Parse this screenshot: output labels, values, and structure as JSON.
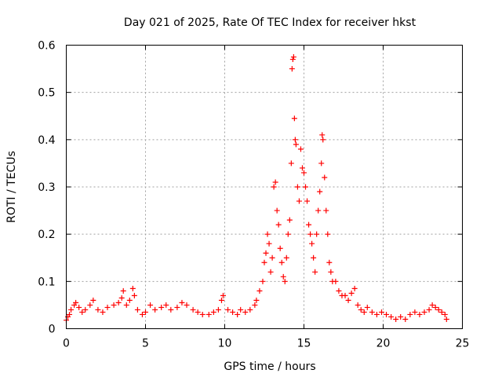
{
  "chart_data": {
    "type": "scatter",
    "title": "Day 021 of 2025, Rate Of TEC Index for receiver hkst",
    "xlabel": "GPS time / hours",
    "ylabel": "ROTI / TECUs",
    "xlim": [
      0,
      25
    ],
    "ylim": [
      0,
      0.6
    ],
    "xticks": [
      "0",
      "5",
      "10",
      "15",
      "20",
      "25"
    ],
    "yticks": [
      "0",
      "0.1",
      "0.2",
      "0.3",
      "0.4",
      "0.5",
      "0.6"
    ],
    "grid": true,
    "legend": "none",
    "marker": "+",
    "color": "#ff0000",
    "series": [
      {
        "points": [
          [
            0.0,
            0.018
          ],
          [
            0.1,
            0.025
          ],
          [
            0.2,
            0.03
          ],
          [
            0.3,
            0.04
          ],
          [
            0.5,
            0.05
          ],
          [
            0.6,
            0.055
          ],
          [
            0.8,
            0.045
          ],
          [
            1.0,
            0.035
          ],
          [
            1.2,
            0.04
          ],
          [
            1.5,
            0.05
          ],
          [
            1.7,
            0.06
          ],
          [
            2.0,
            0.04
          ],
          [
            2.3,
            0.035
          ],
          [
            2.6,
            0.045
          ],
          [
            3.0,
            0.05
          ],
          [
            3.3,
            0.055
          ],
          [
            3.5,
            0.065
          ],
          [
            3.6,
            0.08
          ],
          [
            3.8,
            0.05
          ],
          [
            4.0,
            0.06
          ],
          [
            4.2,
            0.085
          ],
          [
            4.3,
            0.07
          ],
          [
            4.5,
            0.04
          ],
          [
            4.8,
            0.03
          ],
          [
            5.0,
            0.035
          ],
          [
            5.3,
            0.05
          ],
          [
            5.6,
            0.04
          ],
          [
            6.0,
            0.045
          ],
          [
            6.3,
            0.05
          ],
          [
            6.6,
            0.04
          ],
          [
            7.0,
            0.045
          ],
          [
            7.3,
            0.055
          ],
          [
            7.6,
            0.05
          ],
          [
            8.0,
            0.04
          ],
          [
            8.3,
            0.035
          ],
          [
            8.6,
            0.03
          ],
          [
            9.0,
            0.03
          ],
          [
            9.3,
            0.035
          ],
          [
            9.6,
            0.04
          ],
          [
            9.8,
            0.06
          ],
          [
            9.9,
            0.07
          ],
          [
            10.2,
            0.04
          ],
          [
            10.5,
            0.035
          ],
          [
            10.8,
            0.03
          ],
          [
            11.0,
            0.04
          ],
          [
            11.3,
            0.035
          ],
          [
            11.6,
            0.04
          ],
          [
            11.9,
            0.05
          ],
          [
            12.0,
            0.06
          ],
          [
            12.2,
            0.08
          ],
          [
            12.4,
            0.1
          ],
          [
            12.5,
            0.14
          ],
          [
            12.6,
            0.16
          ],
          [
            12.7,
            0.2
          ],
          [
            12.8,
            0.18
          ],
          [
            12.9,
            0.12
          ],
          [
            13.0,
            0.15
          ],
          [
            13.1,
            0.3
          ],
          [
            13.2,
            0.31
          ],
          [
            13.3,
            0.25
          ],
          [
            13.4,
            0.22
          ],
          [
            13.5,
            0.17
          ],
          [
            13.6,
            0.14
          ],
          [
            13.7,
            0.11
          ],
          [
            13.8,
            0.1
          ],
          [
            13.9,
            0.15
          ],
          [
            14.0,
            0.2
          ],
          [
            14.1,
            0.23
          ],
          [
            14.2,
            0.35
          ],
          [
            14.25,
            0.55
          ],
          [
            14.3,
            0.57
          ],
          [
            14.35,
            0.575
          ],
          [
            14.4,
            0.445
          ],
          [
            14.45,
            0.4
          ],
          [
            14.5,
            0.39
          ],
          [
            14.6,
            0.3
          ],
          [
            14.7,
            0.27
          ],
          [
            14.8,
            0.38
          ],
          [
            14.9,
            0.34
          ],
          [
            15.0,
            0.33
          ],
          [
            15.1,
            0.3
          ],
          [
            15.2,
            0.27
          ],
          [
            15.3,
            0.22
          ],
          [
            15.4,
            0.2
          ],
          [
            15.5,
            0.18
          ],
          [
            15.6,
            0.15
          ],
          [
            15.7,
            0.12
          ],
          [
            15.8,
            0.2
          ],
          [
            15.9,
            0.25
          ],
          [
            16.0,
            0.29
          ],
          [
            16.1,
            0.35
          ],
          [
            16.15,
            0.41
          ],
          [
            16.2,
            0.4
          ],
          [
            16.3,
            0.32
          ],
          [
            16.4,
            0.25
          ],
          [
            16.5,
            0.2
          ],
          [
            16.6,
            0.14
          ],
          [
            16.7,
            0.12
          ],
          [
            16.8,
            0.1
          ],
          [
            17.0,
            0.1
          ],
          [
            17.2,
            0.08
          ],
          [
            17.4,
            0.07
          ],
          [
            17.6,
            0.07
          ],
          [
            17.8,
            0.06
          ],
          [
            18.0,
            0.075
          ],
          [
            18.2,
            0.085
          ],
          [
            18.4,
            0.05
          ],
          [
            18.6,
            0.04
          ],
          [
            18.8,
            0.035
          ],
          [
            19.0,
            0.045
          ],
          [
            19.3,
            0.035
          ],
          [
            19.6,
            0.03
          ],
          [
            19.9,
            0.035
          ],
          [
            20.2,
            0.03
          ],
          [
            20.5,
            0.025
          ],
          [
            20.8,
            0.02
          ],
          [
            21.1,
            0.025
          ],
          [
            21.4,
            0.02
          ],
          [
            21.7,
            0.03
          ],
          [
            22.0,
            0.035
          ],
          [
            22.3,
            0.03
          ],
          [
            22.6,
            0.035
          ],
          [
            22.9,
            0.04
          ],
          [
            23.1,
            0.05
          ],
          [
            23.3,
            0.045
          ],
          [
            23.5,
            0.04
          ],
          [
            23.7,
            0.035
          ],
          [
            23.9,
            0.03
          ],
          [
            24.0,
            0.02
          ]
        ]
      }
    ]
  }
}
